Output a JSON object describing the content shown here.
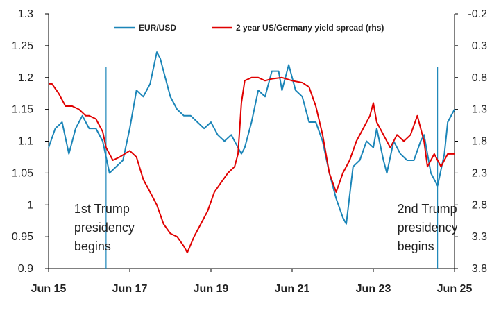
{
  "chart_data": {
    "type": "line",
    "colors": {
      "eurusd": "#1b85b8",
      "spread": "#e00000",
      "event_line": "#1b85b8"
    },
    "x_ticks": [
      "Jun 15",
      "Jun 17",
      "Jun 19",
      "Jun 21",
      "Jun 23",
      "Jun 25"
    ],
    "y_left": {
      "range": [
        0.9,
        1.3
      ],
      "ticks": [
        "1.3",
        "1.25",
        "1.2",
        "1.15",
        "1.1",
        "1.05",
        "1",
        "0.95",
        "0.9"
      ]
    },
    "y_right": {
      "range": [
        -0.2,
        3.8
      ],
      "inverted": true,
      "ticks": [
        "-0.2",
        "0.3",
        "0.8",
        "1.3",
        "1.8",
        "2.3",
        "2.8",
        "3.3",
        "3.8"
      ]
    },
    "legend": {
      "placement": "top",
      "items": [
        "EUR/USD",
        "2 year US/Germany yield spread (rhs)"
      ]
    },
    "series": [
      {
        "name": "EUR/USD",
        "axis": "left",
        "points": [
          [
            "2015-06",
            1.09
          ],
          [
            "2015-08",
            1.12
          ],
          [
            "2015-10",
            1.13
          ],
          [
            "2015-12",
            1.08
          ],
          [
            "2016-02",
            1.12
          ],
          [
            "2016-04",
            1.14
          ],
          [
            "2016-06",
            1.12
          ],
          [
            "2016-08",
            1.12
          ],
          [
            "2016-10",
            1.1
          ],
          [
            "2016-12",
            1.05
          ],
          [
            "2017-02",
            1.06
          ],
          [
            "2017-04",
            1.07
          ],
          [
            "2017-06",
            1.12
          ],
          [
            "2017-08",
            1.18
          ],
          [
            "2017-10",
            1.17
          ],
          [
            "2017-12",
            1.19
          ],
          [
            "2018-02",
            1.24
          ],
          [
            "2018-03",
            1.23
          ],
          [
            "2018-04",
            1.21
          ],
          [
            "2018-06",
            1.17
          ],
          [
            "2018-08",
            1.15
          ],
          [
            "2018-10",
            1.14
          ],
          [
            "2018-12",
            1.14
          ],
          [
            "2019-02",
            1.13
          ],
          [
            "2019-04",
            1.12
          ],
          [
            "2019-06",
            1.13
          ],
          [
            "2019-08",
            1.11
          ],
          [
            "2019-10",
            1.1
          ],
          [
            "2019-12",
            1.11
          ],
          [
            "2020-02",
            1.09
          ],
          [
            "2020-03",
            1.08
          ],
          [
            "2020-04",
            1.09
          ],
          [
            "2020-06",
            1.13
          ],
          [
            "2020-08",
            1.18
          ],
          [
            "2020-10",
            1.17
          ],
          [
            "2020-12",
            1.21
          ],
          [
            "2021-02",
            1.21
          ],
          [
            "2021-03",
            1.18
          ],
          [
            "2021-05",
            1.22
          ],
          [
            "2021-07",
            1.18
          ],
          [
            "2021-09",
            1.17
          ],
          [
            "2021-11",
            1.13
          ],
          [
            "2022-01",
            1.13
          ],
          [
            "2022-03",
            1.1
          ],
          [
            "2022-05",
            1.05
          ],
          [
            "2022-07",
            1.01
          ],
          [
            "2022-09",
            0.98
          ],
          [
            "2022-10",
            0.97
          ],
          [
            "2022-12",
            1.06
          ],
          [
            "2023-02",
            1.07
          ],
          [
            "2023-04",
            1.1
          ],
          [
            "2023-06",
            1.09
          ],
          [
            "2023-07",
            1.12
          ],
          [
            "2023-09",
            1.07
          ],
          [
            "2023-10",
            1.05
          ],
          [
            "2023-12",
            1.1
          ],
          [
            "2024-02",
            1.08
          ],
          [
            "2024-04",
            1.07
          ],
          [
            "2024-06",
            1.07
          ],
          [
            "2024-08",
            1.1
          ],
          [
            "2024-09",
            1.11
          ],
          [
            "2024-11",
            1.05
          ],
          [
            "2025-01",
            1.03
          ],
          [
            "2025-03",
            1.08
          ],
          [
            "2025-04",
            1.13
          ],
          [
            "2025-06",
            1.15
          ]
        ]
      },
      {
        "name": "2 year US/Germany yield spread (rhs)",
        "axis": "right",
        "points": [
          [
            "2015-06",
            0.9
          ],
          [
            "2015-07",
            0.9
          ],
          [
            "2015-09",
            1.05
          ],
          [
            "2015-11",
            1.25
          ],
          [
            "2016-01",
            1.25
          ],
          [
            "2016-03",
            1.3
          ],
          [
            "2016-05",
            1.4
          ],
          [
            "2016-06",
            1.4
          ],
          [
            "2016-08",
            1.45
          ],
          [
            "2016-10",
            1.65
          ],
          [
            "2016-11",
            1.9
          ],
          [
            "2017-01",
            2.1
          ],
          [
            "2017-03",
            2.05
          ],
          [
            "2017-06",
            1.95
          ],
          [
            "2017-08",
            2.05
          ],
          [
            "2017-10",
            2.4
          ],
          [
            "2017-12",
            2.6
          ],
          [
            "2018-02",
            2.8
          ],
          [
            "2018-04",
            3.1
          ],
          [
            "2018-06",
            3.25
          ],
          [
            "2018-08",
            3.3
          ],
          [
            "2018-10",
            3.45
          ],
          [
            "2018-11",
            3.55
          ],
          [
            "2019-01",
            3.3
          ],
          [
            "2019-03",
            3.1
          ],
          [
            "2019-05",
            2.9
          ],
          [
            "2019-07",
            2.6
          ],
          [
            "2019-09",
            2.45
          ],
          [
            "2019-11",
            2.3
          ],
          [
            "2020-01",
            2.2
          ],
          [
            "2020-02",
            2.0
          ],
          [
            "2020-03",
            1.2
          ],
          [
            "2020-04",
            0.85
          ],
          [
            "2020-06",
            0.8
          ],
          [
            "2020-08",
            0.8
          ],
          [
            "2020-10",
            0.85
          ],
          [
            "2020-12",
            0.82
          ],
          [
            "2021-03",
            0.8
          ],
          [
            "2021-06",
            0.85
          ],
          [
            "2021-09",
            0.88
          ],
          [
            "2021-11",
            0.95
          ],
          [
            "2022-01",
            1.25
          ],
          [
            "2022-03",
            1.7
          ],
          [
            "2022-05",
            2.3
          ],
          [
            "2022-07",
            2.6
          ],
          [
            "2022-09",
            2.3
          ],
          [
            "2022-11",
            2.1
          ],
          [
            "2023-01",
            1.8
          ],
          [
            "2023-03",
            1.6
          ],
          [
            "2023-05",
            1.4
          ],
          [
            "2023-06",
            1.2
          ],
          [
            "2023-07",
            1.5
          ],
          [
            "2023-09",
            1.7
          ],
          [
            "2023-11",
            1.9
          ],
          [
            "2024-01",
            1.7
          ],
          [
            "2024-03",
            1.8
          ],
          [
            "2024-05",
            1.7
          ],
          [
            "2024-07",
            1.4
          ],
          [
            "2024-09",
            1.8
          ],
          [
            "2024-10",
            2.2
          ],
          [
            "2024-12",
            2.0
          ],
          [
            "2025-02",
            2.2
          ],
          [
            "2025-04",
            2.0
          ],
          [
            "2025-06",
            2.0
          ]
        ]
      }
    ],
    "events": [
      {
        "date": "2016-11",
        "label_lines": [
          "1st Trump",
          "presidency",
          "begins"
        ]
      },
      {
        "date": "2025-01",
        "label_lines": [
          "2nd Trump",
          "presidency",
          "begins"
        ]
      }
    ]
  }
}
